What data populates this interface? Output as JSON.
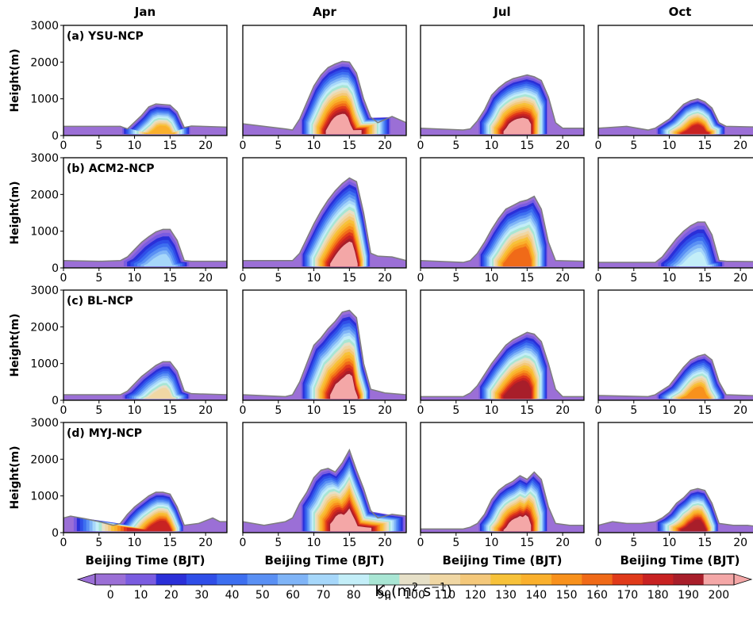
{
  "chart_data": {
    "type": "contour",
    "columns": [
      "Jan",
      "Apr",
      "Jul",
      "Oct"
    ],
    "rows": [
      {
        "label": "(a) YSU-NCP"
      },
      {
        "label": "(b) ACM2-NCP"
      },
      {
        "label": "(c) BL-NCP"
      },
      {
        "label": "(d) MYJ-NCP"
      }
    ],
    "xlabel": "Beijing Time (BJT)",
    "ylabel": "Height(m)",
    "xticks": [
      0,
      5,
      10,
      15,
      20
    ],
    "xlim": [
      0,
      23
    ],
    "yticks": [
      0,
      1000,
      2000,
      3000
    ],
    "ylim": [
      0,
      3000
    ],
    "colorbar": {
      "label_main": "K",
      "label_sub": "h",
      "label_unit": "(m",
      "label_exp1": "2",
      "label_mid": " s",
      "label_exp2": "−1",
      "label_end": ")",
      "ticks": [
        0,
        10,
        20,
        30,
        40,
        50,
        60,
        70,
        80,
        90,
        100,
        110,
        120,
        130,
        140,
        150,
        160,
        170,
        180,
        190,
        200
      ],
      "tick_labels": [
        "0",
        "10",
        "20",
        "30",
        "40",
        "50",
        "60",
        "70",
        "80",
        "90",
        "100",
        "110",
        "120",
        "130",
        "140",
        "150",
        "160",
        "170",
        "180",
        "190",
        "200"
      ],
      "range": [
        0,
        200
      ],
      "extend": "both",
      "colors": [
        "#9b6fd6",
        "#7a5ce0",
        "#2a2fd8",
        "#2f4ee8",
        "#3d6ff0",
        "#5a90f4",
        "#7fb4f7",
        "#a6d7fa",
        "#c3eef8",
        "#a9e6d4",
        "#e6e0c8",
        "#f0d7a4",
        "#f4c87a",
        "#f7c23a",
        "#fab02c",
        "#f8911c",
        "#f06a18",
        "#e03a1a",
        "#c82222",
        "#a81e2a",
        "#f4a7a7"
      ]
    },
    "panels": [
      {
        "row": 0,
        "col": 0,
        "pbl_top": [
          [
            0,
            250
          ],
          [
            8,
            250
          ],
          [
            9,
            180
          ],
          [
            11,
            550
          ],
          [
            12,
            780
          ],
          [
            13,
            860
          ],
          [
            15,
            830
          ],
          [
            16,
            650
          ],
          [
            17,
            220
          ],
          [
            18,
            260
          ],
          [
            23,
            230
          ]
        ],
        "core_height": 420,
        "core_value": 140,
        "peak_hour": 14
      },
      {
        "row": 0,
        "col": 1,
        "pbl_top": [
          [
            0,
            320
          ],
          [
            6,
            180
          ],
          [
            7,
            150
          ],
          [
            8,
            450
          ],
          [
            9,
            900
          ],
          [
            10,
            1350
          ],
          [
            11,
            1650
          ],
          [
            12,
            1850
          ],
          [
            13,
            1950
          ],
          [
            14,
            2020
          ],
          [
            15,
            2000
          ],
          [
            16,
            1700
          ],
          [
            17,
            1000
          ],
          [
            18,
            500
          ],
          [
            19,
            350
          ],
          [
            21,
            520
          ],
          [
            23,
            350
          ]
        ],
        "core_height": 1800,
        "core_value": 200,
        "peak_hour": 14
      },
      {
        "row": 0,
        "col": 2,
        "pbl_top": [
          [
            0,
            200
          ],
          [
            6,
            150
          ],
          [
            7,
            180
          ],
          [
            8,
            400
          ],
          [
            9,
            700
          ],
          [
            10,
            1100
          ],
          [
            11,
            1300
          ],
          [
            12,
            1450
          ],
          [
            13,
            1550
          ],
          [
            15,
            1650
          ],
          [
            16,
            1600
          ],
          [
            17,
            1500
          ],
          [
            18,
            1050
          ],
          [
            19,
            350
          ],
          [
            20,
            200
          ],
          [
            23,
            200
          ]
        ],
        "core_height": 1350,
        "core_value": 200,
        "peak_hour": 14
      },
      {
        "row": 0,
        "col": 3,
        "pbl_top": [
          [
            0,
            200
          ],
          [
            4,
            250
          ],
          [
            7,
            150
          ],
          [
            8,
            200
          ],
          [
            10,
            450
          ],
          [
            11,
            650
          ],
          [
            12,
            850
          ],
          [
            13,
            950
          ],
          [
            14,
            1000
          ],
          [
            15,
            920
          ],
          [
            16,
            750
          ],
          [
            17,
            350
          ],
          [
            18,
            250
          ],
          [
            23,
            230
          ]
        ],
        "core_height": 500,
        "core_value": 180,
        "peak_hour": 14
      },
      {
        "row": 1,
        "col": 0,
        "pbl_top": [
          [
            0,
            200
          ],
          [
            5,
            180
          ],
          [
            8,
            200
          ],
          [
            9,
            300
          ],
          [
            10,
            500
          ],
          [
            11,
            700
          ],
          [
            12,
            850
          ],
          [
            13,
            980
          ],
          [
            14,
            1050
          ],
          [
            15,
            1050
          ],
          [
            16,
            750
          ],
          [
            17,
            200
          ],
          [
            18,
            180
          ],
          [
            23,
            180
          ]
        ],
        "core_height": 0,
        "core_value": 70,
        "peak_hour": 14
      },
      {
        "row": 1,
        "col": 1,
        "pbl_top": [
          [
            0,
            200
          ],
          [
            4,
            200
          ],
          [
            7,
            200
          ],
          [
            8,
            400
          ],
          [
            9,
            800
          ],
          [
            10,
            1200
          ],
          [
            11,
            1550
          ],
          [
            12,
            1850
          ],
          [
            13,
            2100
          ],
          [
            14,
            2300
          ],
          [
            15,
            2450
          ],
          [
            16,
            2350
          ],
          [
            17,
            1500
          ],
          [
            18,
            400
          ],
          [
            19,
            320
          ],
          [
            21,
            300
          ],
          [
            23,
            200
          ]
        ],
        "core_height": 1400,
        "core_value": 200,
        "peak_hour": 15
      },
      {
        "row": 1,
        "col": 2,
        "pbl_top": [
          [
            0,
            200
          ],
          [
            6,
            150
          ],
          [
            7,
            200
          ],
          [
            8,
            400
          ],
          [
            9,
            700
          ],
          [
            10,
            1050
          ],
          [
            11,
            1350
          ],
          [
            12,
            1600
          ],
          [
            13,
            1700
          ],
          [
            14,
            1800
          ],
          [
            15,
            1850
          ],
          [
            16,
            1950
          ],
          [
            17,
            1600
          ],
          [
            18,
            700
          ],
          [
            19,
            200
          ],
          [
            23,
            180
          ]
        ],
        "core_height": 900,
        "core_value": 160,
        "peak_hour": 14
      },
      {
        "row": 1,
        "col": 3,
        "pbl_top": [
          [
            0,
            150
          ],
          [
            7,
            150
          ],
          [
            8,
            150
          ],
          [
            9,
            300
          ],
          [
            10,
            550
          ],
          [
            11,
            800
          ],
          [
            12,
            1000
          ],
          [
            13,
            1150
          ],
          [
            14,
            1250
          ],
          [
            15,
            1250
          ],
          [
            16,
            900
          ],
          [
            17,
            200
          ],
          [
            18,
            180
          ],
          [
            23,
            170
          ]
        ],
        "core_height": 0,
        "core_value": 80,
        "peak_hour": 14
      },
      {
        "row": 2,
        "col": 0,
        "pbl_top": [
          [
            0,
            150
          ],
          [
            8,
            150
          ],
          [
            9,
            250
          ],
          [
            10,
            450
          ],
          [
            11,
            650
          ],
          [
            12,
            800
          ],
          [
            13,
            950
          ],
          [
            14,
            1050
          ],
          [
            15,
            1050
          ],
          [
            16,
            800
          ],
          [
            17,
            250
          ],
          [
            18,
            180
          ],
          [
            23,
            150
          ]
        ],
        "core_height": 500,
        "core_value": 110,
        "peak_hour": 14
      },
      {
        "row": 2,
        "col": 1,
        "pbl_top": [
          [
            0,
            150
          ],
          [
            6,
            100
          ],
          [
            7,
            150
          ],
          [
            8,
            500
          ],
          [
            9,
            1000
          ],
          [
            10,
            1500
          ],
          [
            11,
            1700
          ],
          [
            12,
            1950
          ],
          [
            13,
            2150
          ],
          [
            14,
            2400
          ],
          [
            15,
            2450
          ],
          [
            16,
            2250
          ],
          [
            17,
            1000
          ],
          [
            18,
            300
          ],
          [
            20,
            200
          ],
          [
            23,
            150
          ]
        ],
        "core_height": 1650,
        "core_value": 200,
        "peak_hour": 15
      },
      {
        "row": 2,
        "col": 2,
        "pbl_top": [
          [
            0,
            100
          ],
          [
            6,
            100
          ],
          [
            7,
            200
          ],
          [
            8,
            400
          ],
          [
            9,
            700
          ],
          [
            10,
            1000
          ],
          [
            11,
            1250
          ],
          [
            12,
            1500
          ],
          [
            13,
            1650
          ],
          [
            14,
            1750
          ],
          [
            15,
            1850
          ],
          [
            16,
            1800
          ],
          [
            17,
            1600
          ],
          [
            18,
            1000
          ],
          [
            19,
            300
          ],
          [
            20,
            100
          ],
          [
            23,
            100
          ]
        ],
        "core_height": 1050,
        "core_value": 190,
        "peak_hour": 14
      },
      {
        "row": 2,
        "col": 3,
        "pbl_top": [
          [
            0,
            130
          ],
          [
            7,
            100
          ],
          [
            8,
            150
          ],
          [
            10,
            400
          ],
          [
            11,
            650
          ],
          [
            12,
            900
          ],
          [
            13,
            1100
          ],
          [
            14,
            1200
          ],
          [
            15,
            1250
          ],
          [
            16,
            1100
          ],
          [
            17,
            500
          ],
          [
            18,
            150
          ],
          [
            23,
            120
          ]
        ],
        "core_height": 600,
        "core_value": 150,
        "peak_hour": 14
      },
      {
        "row": 3,
        "col": 0,
        "pbl_top": [
          [
            0,
            400
          ],
          [
            1,
            450
          ],
          [
            3,
            380
          ],
          [
            5,
            300
          ],
          [
            7,
            200
          ],
          [
            8,
            250
          ],
          [
            9,
            500
          ],
          [
            10,
            700
          ],
          [
            11,
            850
          ],
          [
            12,
            1000
          ],
          [
            13,
            1100
          ],
          [
            14,
            1100
          ],
          [
            15,
            1050
          ],
          [
            16,
            700
          ],
          [
            17,
            200
          ],
          [
            19,
            250
          ],
          [
            21,
            400
          ],
          [
            22,
            300
          ],
          [
            23,
            300
          ]
        ],
        "core_height": 400,
        "core_value": 180,
        "peak_hour": 14
      },
      {
        "row": 3,
        "col": 1,
        "pbl_top": [
          [
            0,
            300
          ],
          [
            3,
            200
          ],
          [
            6,
            300
          ],
          [
            7,
            400
          ],
          [
            8,
            800
          ],
          [
            9,
            1100
          ],
          [
            10,
            1500
          ],
          [
            11,
            1700
          ],
          [
            12,
            1750
          ],
          [
            13,
            1650
          ],
          [
            14,
            1900
          ],
          [
            15,
            2250
          ],
          [
            16,
            1700
          ],
          [
            17,
            1200
          ],
          [
            18,
            600
          ],
          [
            19,
            400
          ],
          [
            21,
            500
          ],
          [
            23,
            450
          ]
        ],
        "core_height": 1300,
        "core_value": 200,
        "peak_hour": 15
      },
      {
        "row": 3,
        "col": 2,
        "pbl_top": [
          [
            0,
            100
          ],
          [
            6,
            100
          ],
          [
            7,
            150
          ],
          [
            8,
            250
          ],
          [
            9,
            500
          ],
          [
            10,
            900
          ],
          [
            11,
            1150
          ],
          [
            12,
            1300
          ],
          [
            13,
            1400
          ],
          [
            14,
            1550
          ],
          [
            15,
            1450
          ],
          [
            16,
            1650
          ],
          [
            17,
            1450
          ],
          [
            18,
            700
          ],
          [
            19,
            250
          ],
          [
            21,
            200
          ],
          [
            23,
            200
          ]
        ],
        "core_height": 1250,
        "core_value": 200,
        "peak_hour": 14
      },
      {
        "row": 3,
        "col": 3,
        "pbl_top": [
          [
            0,
            200
          ],
          [
            2,
            300
          ],
          [
            4,
            250
          ],
          [
            6,
            250
          ],
          [
            8,
            300
          ],
          [
            9,
            400
          ],
          [
            10,
            550
          ],
          [
            11,
            800
          ],
          [
            12,
            950
          ],
          [
            13,
            1150
          ],
          [
            14,
            1200
          ],
          [
            15,
            1150
          ],
          [
            16,
            800
          ],
          [
            17,
            250
          ],
          [
            19,
            200
          ],
          [
            21,
            200
          ],
          [
            23,
            150
          ]
        ],
        "core_height": 550,
        "core_value": 190,
        "peak_hour": 14
      }
    ]
  }
}
